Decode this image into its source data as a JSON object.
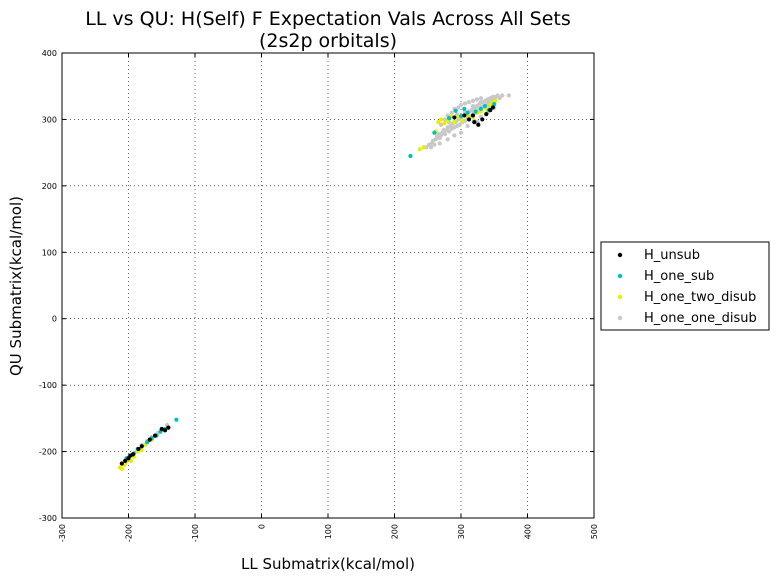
{
  "chart_data": {
    "type": "scatter",
    "title": "LL vs QU: H(Self) F Expectation Vals Across All Sets",
    "subtitle": "(2s2p orbitals)",
    "xlabel": "LL Submatrix(kcal/mol)",
    "ylabel": "QU Submatrix(kcal/mol)",
    "xlim": [
      -300,
      500
    ],
    "ylim": [
      -300,
      400
    ],
    "xticks": [
      -300,
      -200,
      -100,
      0,
      100,
      200,
      300,
      400,
      500
    ],
    "yticks": [
      -300,
      -200,
      -100,
      0,
      100,
      200,
      300,
      400
    ],
    "grid": true,
    "legend_position": "outside-right",
    "series": [
      {
        "name": "H_unsub",
        "color": "#000000",
        "points": [
          [
            -210,
            -218
          ],
          [
            -205,
            -214
          ],
          [
            -200,
            -210
          ],
          [
            -197,
            -206
          ],
          [
            -193,
            -204
          ],
          [
            -185,
            -196
          ],
          [
            -180,
            -192
          ],
          [
            -168,
            -182
          ],
          [
            -160,
            -176
          ],
          [
            -150,
            -166
          ],
          [
            -145,
            -168
          ],
          [
            -140,
            -164
          ],
          [
            290,
            303
          ],
          [
            305,
            306
          ],
          [
            312,
            300
          ],
          [
            318,
            306
          ],
          [
            320,
            296
          ],
          [
            326,
            292
          ],
          [
            332,
            300
          ],
          [
            338,
            308
          ],
          [
            344,
            314
          ],
          [
            348,
            318
          ]
        ]
      },
      {
        "name": "H_one_sub",
        "color": "#00bfbf",
        "points": [
          [
            -203,
            -210
          ],
          [
            -198,
            -206
          ],
          [
            -192,
            -203
          ],
          [
            -186,
            -196
          ],
          [
            -172,
            -186
          ],
          [
            -165,
            -180
          ],
          [
            -158,
            -176
          ],
          [
            -152,
            -170
          ],
          [
            -145,
            -166
          ],
          [
            -128,
            -152
          ],
          [
            224,
            245
          ],
          [
            260,
            280
          ],
          [
            282,
            302
          ],
          [
            292,
            313
          ],
          [
            300,
            305
          ],
          [
            305,
            316
          ],
          [
            310,
            310
          ],
          [
            322,
            312
          ],
          [
            330,
            316
          ],
          [
            336,
            320
          ],
          [
            342,
            314
          ],
          [
            350,
            323
          ]
        ]
      },
      {
        "name": "H_one_two_disub",
        "color": "#e5f000",
        "points": [
          [
            -213,
            -224
          ],
          [
            -210,
            -226
          ],
          [
            -206,
            -220
          ],
          [
            -204,
            -216
          ],
          [
            -200,
            -212
          ],
          [
            -196,
            -214
          ],
          [
            -192,
            -208
          ],
          [
            -186,
            -200
          ],
          [
            -180,
            -198
          ],
          [
            -175,
            -190
          ],
          [
            -170,
            -184
          ],
          [
            -165,
            -182
          ],
          [
            238,
            255
          ],
          [
            244,
            258
          ],
          [
            262,
            282
          ],
          [
            266,
            296
          ],
          [
            270,
            300
          ],
          [
            275,
            294
          ],
          [
            280,
            298
          ],
          [
            285,
            304
          ],
          [
            290,
            296
          ],
          [
            296,
            304
          ],
          [
            302,
            298
          ],
          [
            310,
            306
          ],
          [
            318,
            304
          ],
          [
            324,
            310
          ],
          [
            330,
            312
          ],
          [
            336,
            318
          ],
          [
            340,
            314
          ],
          [
            344,
            322
          ],
          [
            348,
            326
          ],
          [
            352,
            328
          ]
        ]
      },
      {
        "name": "H_one_one_disub",
        "color": "#c8c8c8",
        "points": [
          [
            -195,
            -206
          ],
          [
            -188,
            -200
          ],
          [
            -180,
            -190
          ],
          [
            -172,
            -184
          ],
          [
            -165,
            -178
          ],
          [
            -156,
            -172
          ],
          [
            -150,
            -168
          ],
          [
            -142,
            -160
          ],
          [
            248,
            258
          ],
          [
            252,
            262
          ],
          [
            256,
            264
          ],
          [
            258,
            268
          ],
          [
            262,
            270
          ],
          [
            264,
            274
          ],
          [
            266,
            278
          ],
          [
            268,
            272
          ],
          [
            270,
            276
          ],
          [
            272,
            280
          ],
          [
            274,
            284
          ],
          [
            276,
            278
          ],
          [
            278,
            284
          ],
          [
            280,
            288
          ],
          [
            282,
            282
          ],
          [
            284,
            290
          ],
          [
            286,
            286
          ],
          [
            288,
            294
          ],
          [
            290,
            288
          ],
          [
            292,
            296
          ],
          [
            294,
            290
          ],
          [
            296,
            300
          ],
          [
            298,
            292
          ],
          [
            300,
            302
          ],
          [
            302,
            296
          ],
          [
            304,
            306
          ],
          [
            306,
            298
          ],
          [
            308,
            308
          ],
          [
            310,
            302
          ],
          [
            312,
            312
          ],
          [
            314,
            304
          ],
          [
            316,
            314
          ],
          [
            318,
            308
          ],
          [
            320,
            318
          ],
          [
            322,
            310
          ],
          [
            324,
            320
          ],
          [
            326,
            314
          ],
          [
            328,
            324
          ],
          [
            330,
            318
          ],
          [
            332,
            326
          ],
          [
            334,
            320
          ],
          [
            336,
            328
          ],
          [
            338,
            324
          ],
          [
            340,
            330
          ],
          [
            342,
            326
          ],
          [
            344,
            332
          ],
          [
            346,
            328
          ],
          [
            348,
            334
          ],
          [
            350,
            330
          ],
          [
            352,
            334
          ],
          [
            355,
            336
          ],
          [
            358,
            332
          ],
          [
            362,
            336
          ],
          [
            372,
            336
          ],
          [
            276,
            300
          ],
          [
            280,
            306
          ],
          [
            286,
            310
          ],
          [
            290,
            316
          ],
          [
            296,
            318
          ],
          [
            300,
            322
          ],
          [
            306,
            324
          ],
          [
            312,
            326
          ],
          [
            318,
            328
          ],
          [
            324,
            330
          ],
          [
            330,
            332
          ],
          [
            270,
            292
          ],
          [
            282,
            296
          ],
          [
            294,
            308
          ],
          [
            306,
            312
          ],
          [
            318,
            320
          ],
          [
            330,
            326
          ],
          [
            342,
            320
          ],
          [
            300,
            280
          ],
          [
            310,
            290
          ],
          [
            320,
            298
          ],
          [
            290,
            276
          ],
          [
            280,
            270
          ],
          [
            268,
            264
          ],
          [
            330,
            304
          ],
          [
            340,
            310
          ],
          [
            350,
            318
          ],
          [
            260,
            262
          ],
          [
            255,
            258
          ],
          [
            325,
            296
          ]
        ]
      }
    ]
  }
}
